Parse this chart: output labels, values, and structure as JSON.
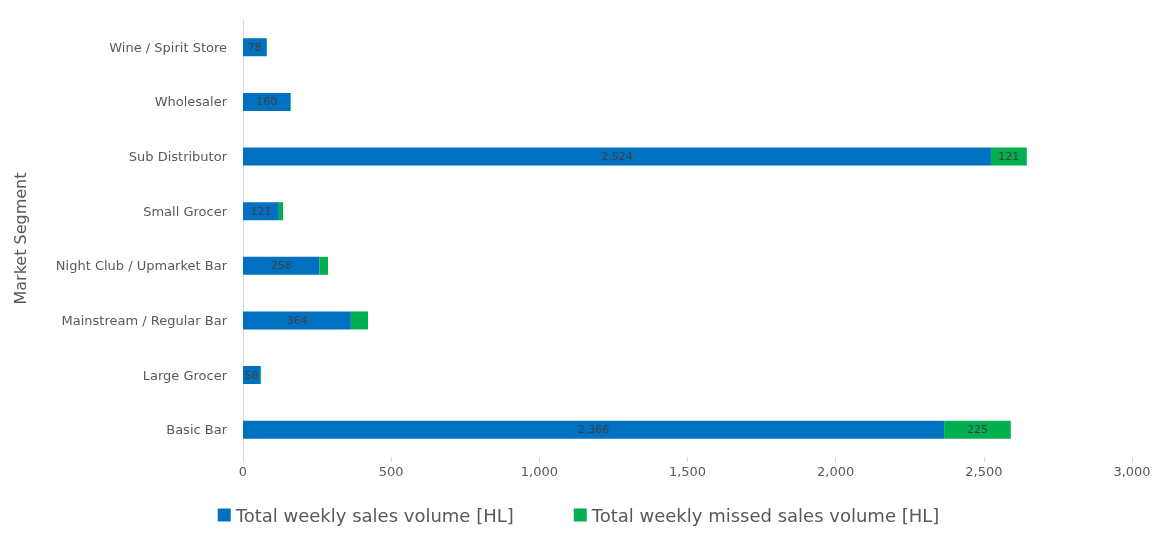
{
  "chart_data": {
    "type": "bar",
    "orientation": "horizontal",
    "stacked": true,
    "ylabel": "Market Segment",
    "categories": [
      "Wine / Spirit Store",
      "Wholesaler",
      "Sub Distributor",
      "Small Grocer",
      "Night Club / Upmarket Bar",
      "Mainstream / Regular Bar",
      "Large Grocer",
      "Basic Bar"
    ],
    "series": [
      {
        "name": "Total weekly sales volume [HL]",
        "color": "#0070c0",
        "values": [
          78,
          160,
          2524,
          121,
          258,
          364,
          58,
          2366
        ],
        "value_labels": [
          "78",
          "160",
          "2,524",
          "121",
          "258",
          "364",
          "58",
          "2,366"
        ]
      },
      {
        "name": "Total weekly missed sales volume [HL]",
        "color": "#00b050",
        "values": [
          3,
          2,
          121,
          14,
          29,
          58,
          3,
          225
        ],
        "value_labels": [
          null,
          null,
          "121",
          null,
          null,
          null,
          null,
          "225"
        ]
      }
    ],
    "xlim": [
      0,
      3000
    ],
    "xticks": [
      0,
      500,
      {
        "value": 1000,
        "label": "1,000"
      },
      {
        "value": 1500,
        "label": "1,500"
      },
      {
        "value": 2000,
        "label": "2,000"
      },
      {
        "value": 2500,
        "label": "2,500"
      },
      {
        "value": 3000,
        "label": "3,000"
      }
    ],
    "grid": false,
    "legend": "bottom"
  }
}
